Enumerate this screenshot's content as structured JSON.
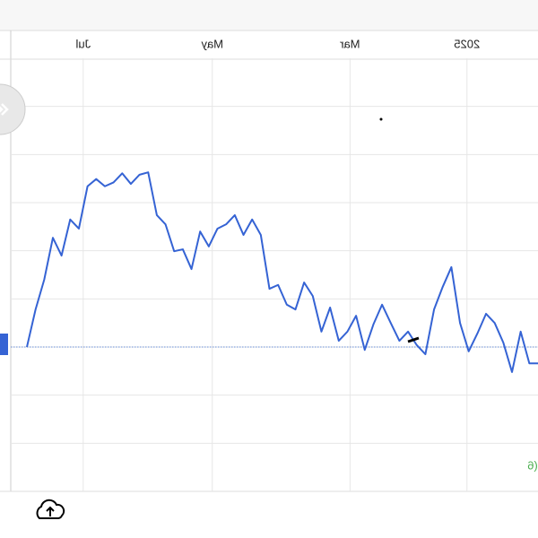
{
  "chart_data": {
    "type": "line",
    "color": "#3563d4",
    "xlim": [
      0,
      59
    ],
    "xticks": [
      {
        "value": 6.5,
        "label": "Jul"
      },
      {
        "value": 21.4,
        "label": "May"
      },
      {
        "value": 37.3,
        "label": "Mar"
      },
      {
        "value": 50.8,
        "label": "2025"
      }
    ],
    "ylim": [
      0,
      90
    ],
    "yticks": [
      10,
      20,
      30,
      40,
      50,
      60,
      70,
      80
    ],
    "grid": true,
    "baseline": 30,
    "values": [
      30.0,
      37.8,
      44.0,
      52.7,
      49.0,
      56.5,
      54.6,
      63.4,
      64.9,
      63.4,
      64.2,
      66.1,
      63.9,
      65.8,
      66.3,
      57.4,
      55.5,
      49.9,
      50.3,
      46.2,
      54.0,
      50.9,
      54.6,
      55.5,
      57.4,
      53.3,
      56.5,
      53.3,
      42.1,
      42.9,
      38.8,
      37.8,
      43.4,
      40.6,
      33.2,
      38.2,
      31.3,
      33.2,
      36.5,
      29.4,
      34.7,
      38.8,
      35.0,
      31.3,
      33.2,
      30.4,
      28.5,
      37.8,
      42.5,
      46.6,
      35.0,
      29.1,
      32.8,
      36.9,
      35.0,
      30.9,
      24.8,
      33.2,
      26.6,
      26.6
    ],
    "corner_text": "(6"
  }
}
